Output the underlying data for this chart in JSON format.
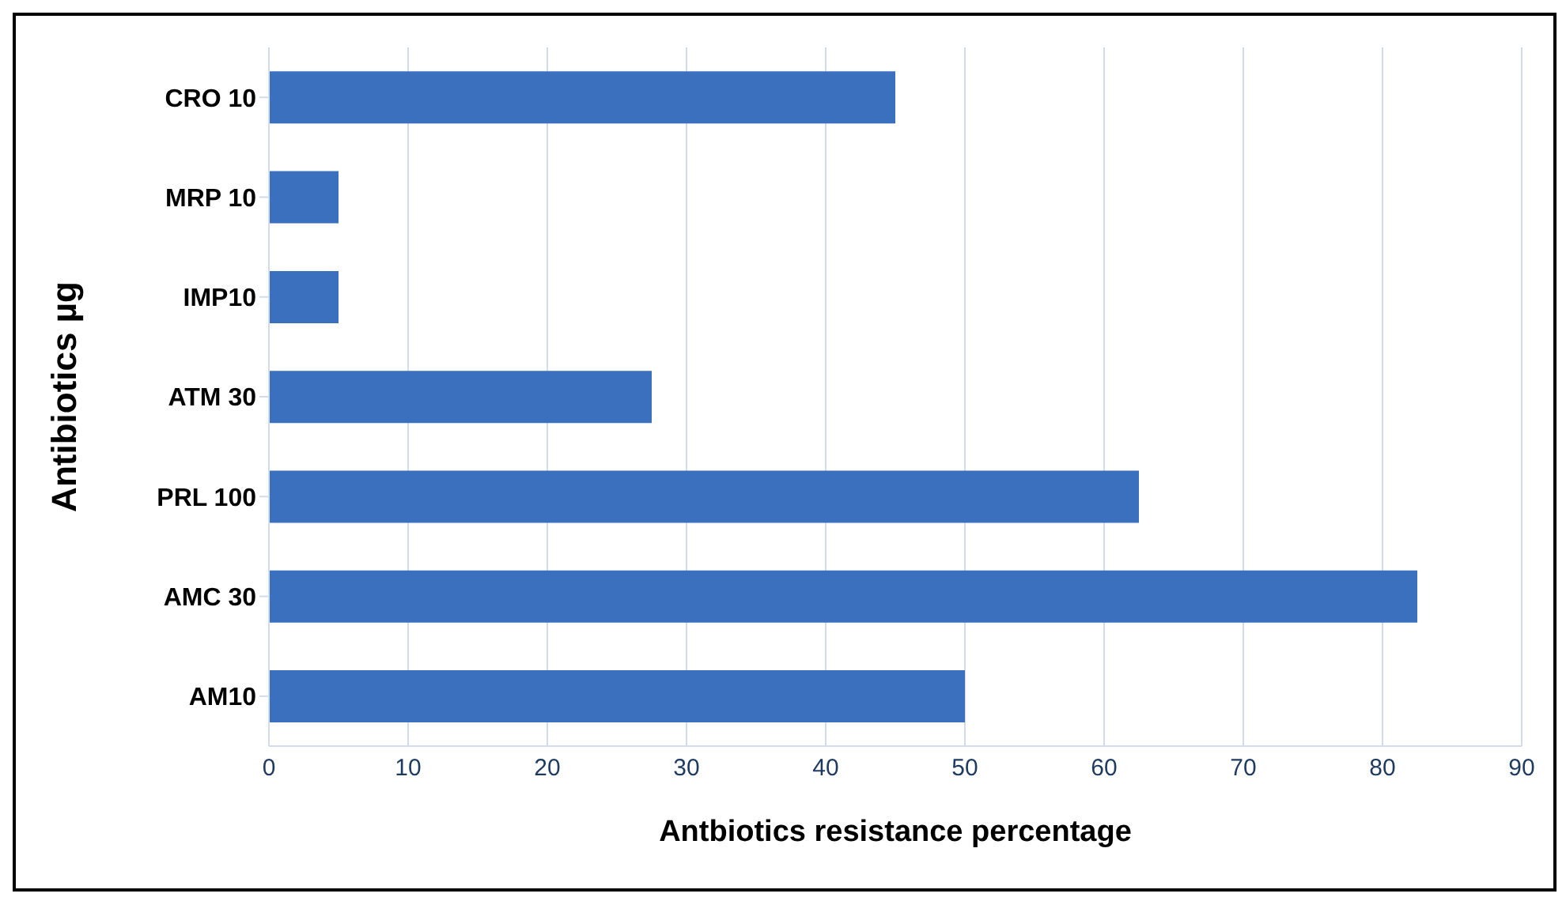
{
  "chart_data": {
    "type": "bar",
    "orientation": "horizontal",
    "xlabel": "Antbiotics resistance percentage",
    "ylabel": "Antibiotics µg",
    "categories": [
      "CRO 10",
      "MRP 10",
      "IMP10",
      "ATM 30",
      "PRL 100",
      "AMC 30",
      "AM10"
    ],
    "values": [
      45,
      5,
      5,
      27.5,
      62.5,
      82.5,
      50
    ],
    "color": "#3a70be",
    "xlim": [
      0,
      90
    ],
    "xticks": [
      0,
      10,
      20,
      30,
      40,
      50,
      60,
      70,
      80,
      90
    ],
    "grid": "x"
  }
}
